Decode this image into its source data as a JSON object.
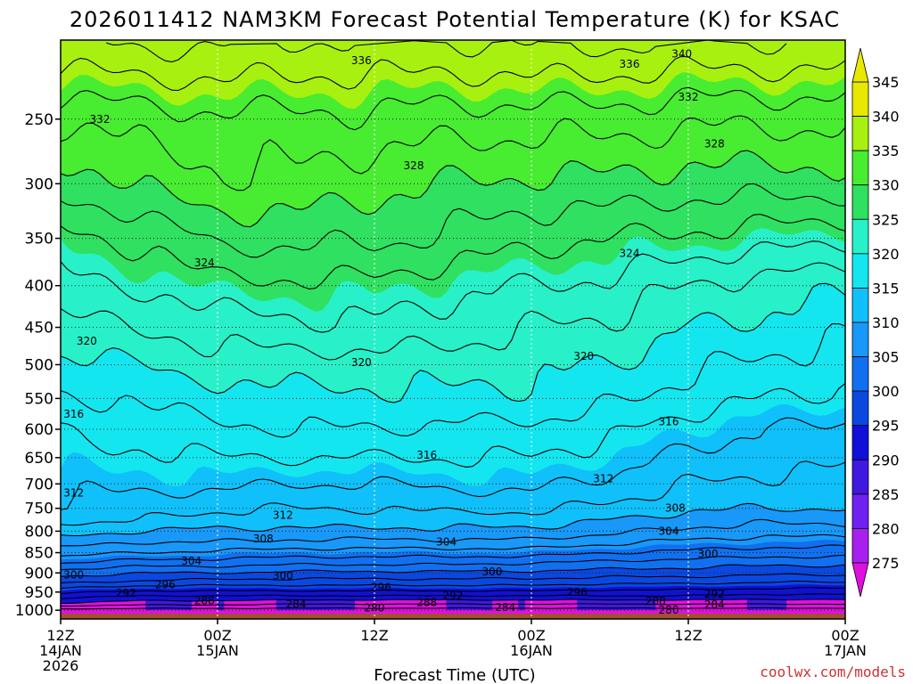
{
  "chart_data": {
    "type": "heatmap",
    "title": "2026011412 NAM3KM Forecast Potential Temperature (K) for KSAC",
    "xlabel": "Forecast Time (UTC)",
    "ylabel": "",
    "x_range_hours": [
      0,
      60
    ],
    "x_ticks": [
      {
        "hour": 0,
        "labels": [
          "12Z",
          "14JAN",
          "2026"
        ]
      },
      {
        "hour": 12,
        "labels": [
          "00Z",
          "15JAN"
        ]
      },
      {
        "hour": 24,
        "labels": [
          "12Z"
        ]
      },
      {
        "hour": 36,
        "labels": [
          "00Z",
          "16JAN"
        ]
      },
      {
        "hour": 48,
        "labels": [
          "12Z"
        ]
      },
      {
        "hour": 60,
        "labels": [
          "00Z",
          "17JAN"
        ]
      }
    ],
    "y_scale": "log",
    "y_range_hpa": [
      1025,
      200
    ],
    "y_ticks": [
      250,
      300,
      350,
      400,
      450,
      500,
      550,
      600,
      650,
      700,
      750,
      800,
      850,
      900,
      950,
      1000
    ],
    "colorbar": {
      "levels": [
        275,
        280,
        285,
        290,
        295,
        300,
        305,
        310,
        315,
        320,
        325,
        330,
        335,
        340,
        345
      ],
      "labels": [
        "345",
        "340",
        "335",
        "330",
        "325",
        "320",
        "315",
        "310",
        "305",
        "300",
        "295",
        "290",
        "285",
        "280",
        "275"
      ],
      "colors": [
        "#e010e0",
        "#a820f0",
        "#7020f0",
        "#4018e0",
        "#1010d8",
        "#0a48e0",
        "#1070f0",
        "#1898f8",
        "#10c0fa",
        "#14e6f0",
        "#28f0c8",
        "#30e060",
        "#48ec30",
        "#a8f010",
        "#e8e800"
      ],
      "units": "K"
    },
    "profile_levels_hpa": [
      1000,
      980,
      960,
      940,
      920,
      900,
      875,
      850,
      825,
      800,
      775,
      750,
      700,
      650,
      600,
      550,
      500,
      450,
      400,
      350,
      300,
      250,
      200
    ],
    "profile_times_hours": [
      0,
      6,
      12,
      18,
      24,
      30,
      36,
      42,
      48,
      54,
      60
    ],
    "theta_profiles": [
      [
        285,
        290,
        293,
        296,
        299,
        301,
        304,
        307,
        309,
        311,
        312.5,
        313.5,
        314.5,
        315.5,
        316,
        317.5,
        319.5,
        321.5,
        323.5,
        325,
        328.5,
        332.5,
        338
      ],
      [
        285,
        289,
        292,
        295,
        298,
        300,
        303,
        306,
        308,
        310,
        312,
        313,
        314.5,
        315.5,
        317,
        318.5,
        320,
        322,
        324,
        326.5,
        330.5,
        333,
        338.5
      ],
      [
        285,
        289,
        292,
        295,
        297.5,
        300,
        303,
        305.5,
        308,
        309.5,
        311,
        312.5,
        314.5,
        316,
        317.5,
        319,
        321,
        323,
        325.5,
        328.5,
        331.5,
        333.5,
        338.5
      ],
      [
        285,
        288.5,
        292,
        295,
        297.5,
        299.5,
        302.5,
        305,
        307.5,
        309.5,
        311,
        312,
        314,
        316,
        318,
        319.5,
        321,
        323.5,
        325.5,
        328.5,
        331.5,
        333.5,
        338
      ],
      [
        285,
        288.5,
        292,
        295,
        297.5,
        299.5,
        302.5,
        305,
        307.5,
        309.5,
        311,
        312,
        314,
        316,
        318,
        319.5,
        321,
        323.5,
        325.5,
        328.5,
        330.5,
        333.5,
        338
      ],
      [
        285,
        288.5,
        292,
        295,
        297.5,
        299.5,
        302.5,
        305,
        307.5,
        309.5,
        311,
        312.5,
        314.5,
        316,
        317.5,
        319.5,
        321,
        323,
        324.5,
        327.5,
        330,
        333,
        338
      ],
      [
        285,
        288.5,
        292,
        295,
        297.5,
        299.5,
        302,
        305,
        307.5,
        309.5,
        311,
        312.5,
        314.5,
        316,
        317.5,
        319.5,
        320.5,
        322,
        324,
        326.5,
        329.5,
        333,
        338.5
      ],
      [
        285,
        288.5,
        292,
        294.5,
        297,
        299,
        301.5,
        304,
        306.5,
        308.5,
        310,
        311.5,
        313.5,
        315,
        316.5,
        318.5,
        320,
        321.5,
        323.5,
        326,
        329.5,
        333,
        338.5
      ],
      [
        285,
        288.5,
        292,
        294.5,
        297,
        299,
        301,
        303.5,
        305.5,
        307.5,
        309,
        310.5,
        312,
        313.5,
        315,
        317,
        318.5,
        320,
        322,
        325.5,
        329,
        332.5,
        338
      ],
      [
        285,
        288.5,
        291.5,
        294,
        296.5,
        298.5,
        300.5,
        303,
        305,
        307,
        308.5,
        310,
        311.5,
        313,
        314,
        316,
        317.5,
        319.5,
        321,
        325,
        329,
        332.5,
        338
      ],
      [
        285,
        288.5,
        291.5,
        294,
        296.5,
        298.5,
        300.5,
        303,
        305,
        307,
        308.5,
        310,
        311,
        312.5,
        313.5,
        315.5,
        317,
        318.5,
        320.5,
        324.5,
        329,
        332.5,
        338
      ]
    ],
    "contour_levels": [
      280,
      284,
      288,
      292,
      296,
      300,
      304,
      308,
      312,
      316,
      320,
      324,
      328,
      332,
      336,
      340
    ],
    "contour_labels": [
      {
        "value": "336",
        "t": 23.0,
        "p": 212
      },
      {
        "value": "336",
        "t": 43.5,
        "p": 214
      },
      {
        "value": "340",
        "t": 47.5,
        "p": 208
      },
      {
        "value": "332",
        "t": 3.0,
        "p": 250
      },
      {
        "value": "332",
        "t": 48.0,
        "p": 235
      },
      {
        "value": "328",
        "t": 27.0,
        "p": 285
      },
      {
        "value": "328",
        "t": 50.0,
        "p": 268
      },
      {
        "value": "324",
        "t": 11.0,
        "p": 375
      },
      {
        "value": "324",
        "t": 43.5,
        "p": 365
      },
      {
        "value": "320",
        "t": 2.0,
        "p": 468
      },
      {
        "value": "320",
        "t": 23.0,
        "p": 497
      },
      {
        "value": "320",
        "t": 40.0,
        "p": 488
      },
      {
        "value": "316",
        "t": 1.0,
        "p": 575
      },
      {
        "value": "316",
        "t": 28.0,
        "p": 645
      },
      {
        "value": "316",
        "t": 46.5,
        "p": 587
      },
      {
        "value": "312",
        "t": 1.0,
        "p": 718
      },
      {
        "value": "312",
        "t": 17.0,
        "p": 765
      },
      {
        "value": "312",
        "t": 41.5,
        "p": 690
      },
      {
        "value": "308",
        "t": 15.5,
        "p": 817
      },
      {
        "value": "308",
        "t": 47.0,
        "p": 750
      },
      {
        "value": "304",
        "t": 10.0,
        "p": 870
      },
      {
        "value": "304",
        "t": 29.5,
        "p": 825
      },
      {
        "value": "304",
        "t": 46.5,
        "p": 800
      },
      {
        "value": "300",
        "t": 1.0,
        "p": 905
      },
      {
        "value": "300",
        "t": 17.0,
        "p": 907
      },
      {
        "value": "300",
        "t": 33.0,
        "p": 897
      },
      {
        "value": "300",
        "t": 49.5,
        "p": 853
      },
      {
        "value": "296",
        "t": 8.0,
        "p": 930
      },
      {
        "value": "296",
        "t": 24.5,
        "p": 937
      },
      {
        "value": "296",
        "t": 39.5,
        "p": 950
      },
      {
        "value": "292",
        "t": 5.0,
        "p": 953
      },
      {
        "value": "292",
        "t": 30.0,
        "p": 960
      },
      {
        "value": "292",
        "t": 50.0,
        "p": 955
      },
      {
        "value": "288",
        "t": 11.0,
        "p": 973
      },
      {
        "value": "288",
        "t": 28.0,
        "p": 978
      },
      {
        "value": "288",
        "t": 45.5,
        "p": 975
      },
      {
        "value": "284",
        "t": 18.0,
        "p": 983
      },
      {
        "value": "284",
        "t": 34.0,
        "p": 992
      },
      {
        "value": "284",
        "t": 50.0,
        "p": 985
      },
      {
        "value": "280",
        "t": 24.0,
        "p": 993
      },
      {
        "value": "280",
        "t": 46.5,
        "p": 999
      }
    ],
    "ground_color": "#a0522d",
    "grid": true
  },
  "credit": "coolwx.com/models"
}
